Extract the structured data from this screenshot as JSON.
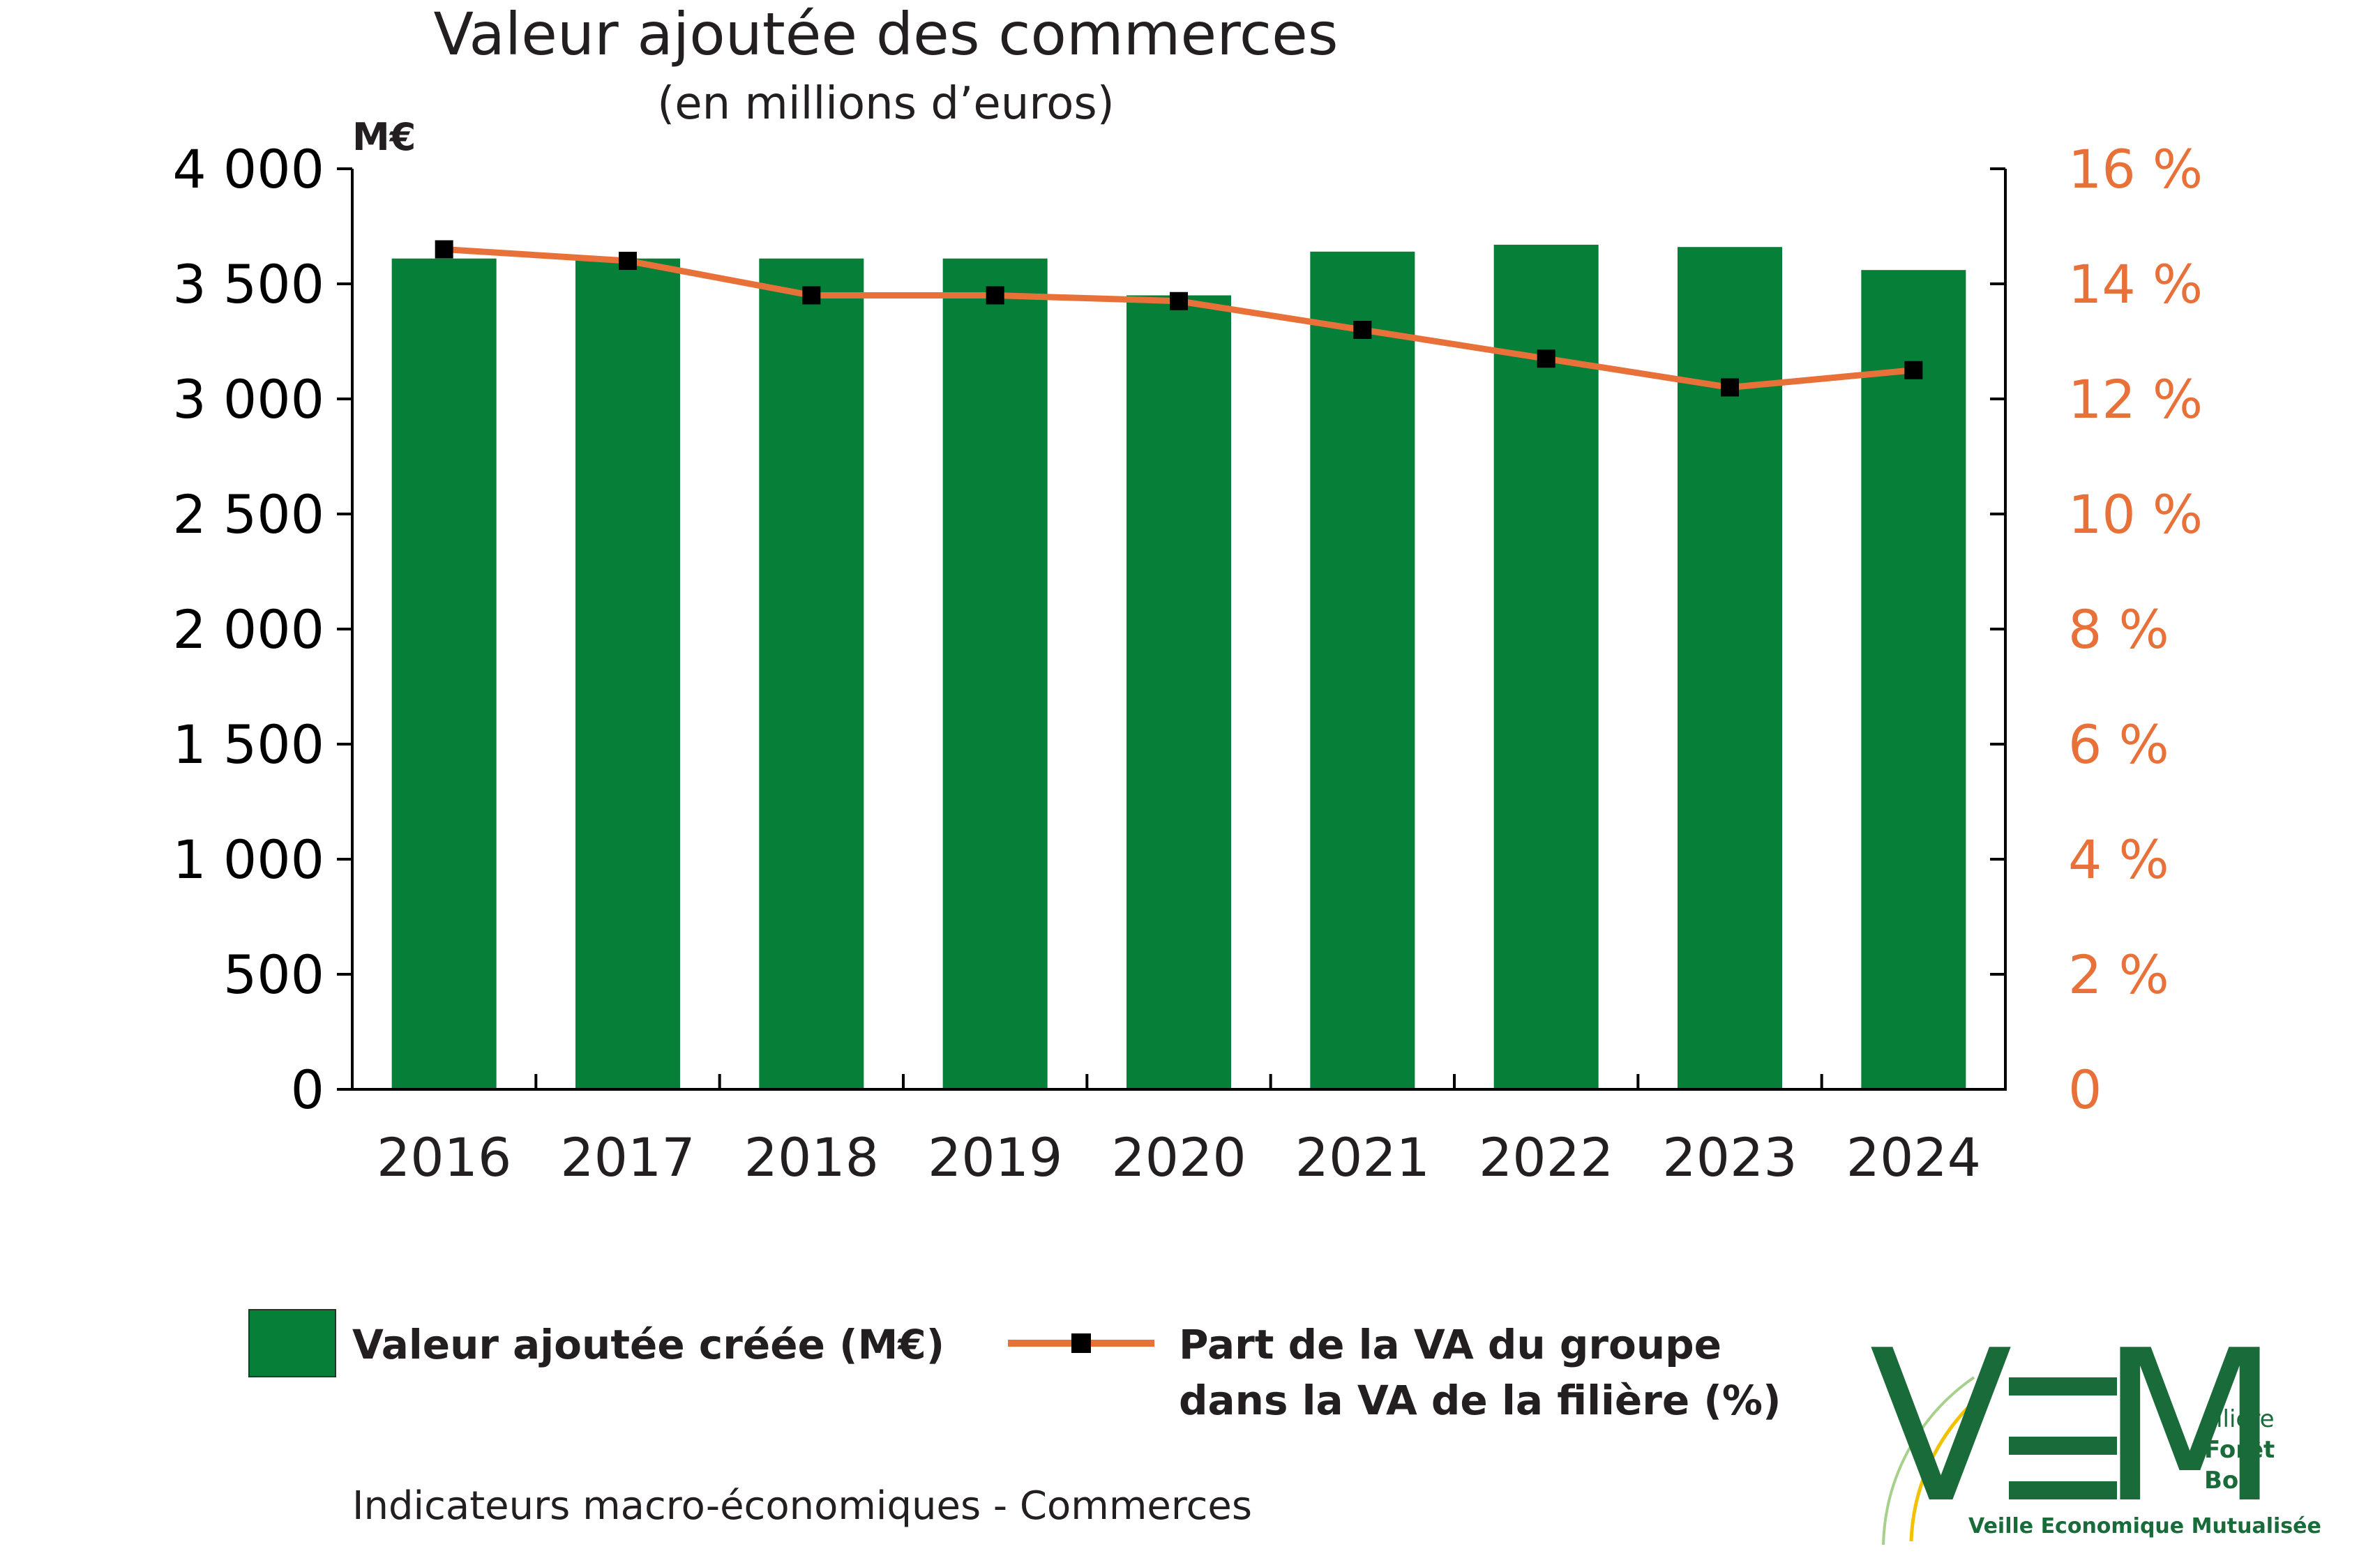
{
  "chart_data": {
    "type": "bar",
    "title": "Valeur ajoutée des commerces",
    "subtitle": "(en millions d’euros)",
    "y_unit": "M€",
    "categories": [
      "2016",
      "2017",
      "2018",
      "2019",
      "2020",
      "2021",
      "2022",
      "2023",
      "2024"
    ],
    "ylim": [
      0,
      4000
    ],
    "y2lim": [
      0,
      16
    ],
    "yticks": [
      0,
      500,
      1000,
      1500,
      2000,
      2500,
      3000,
      3500,
      4000
    ],
    "ytick_labels": [
      "0",
      "500",
      "1 000",
      "1 500",
      "2 000",
      "2 500",
      "3 000",
      "3 500",
      "4 000"
    ],
    "y2ticks": [
      0,
      2,
      4,
      6,
      8,
      10,
      12,
      14,
      16
    ],
    "y2tick_labels": [
      "0",
      "2 %",
      "4 %",
      "6 %",
      "8 %",
      "10 %",
      "12 %",
      "14 %",
      "16 %"
    ],
    "grid": false,
    "legend_position": "bottom",
    "series": [
      {
        "name": "Valeur ajoutée créée (M€)",
        "kind": "bar",
        "axis": "left",
        "color": "#067f38",
        "values": [
          3610,
          3610,
          3610,
          3610,
          3450,
          3640,
          3670,
          3660,
          3560
        ]
      },
      {
        "name": "Part de la VA du groupe dans la VA de la filière (%)",
        "name_lines": [
          "Part de la VA du groupe",
          "dans la VA de la filière (%)"
        ],
        "kind": "line",
        "axis": "right",
        "color": "#e8713a",
        "marker_color": "#000000",
        "values": [
          14.6,
          14.4,
          13.8,
          13.8,
          13.7,
          13.2,
          12.7,
          12.2,
          12.5
        ]
      }
    ]
  },
  "footer": "Indicateurs macro-économiques - Commerces",
  "logo": {
    "letters": [
      "V",
      "M"
    ],
    "side_lines": [
      "Filière",
      "Forêt",
      "Bois"
    ],
    "tagline": "Veille Economique Mutualisée",
    "color": "#1a6b3a",
    "accent_color": "#f2c200"
  }
}
